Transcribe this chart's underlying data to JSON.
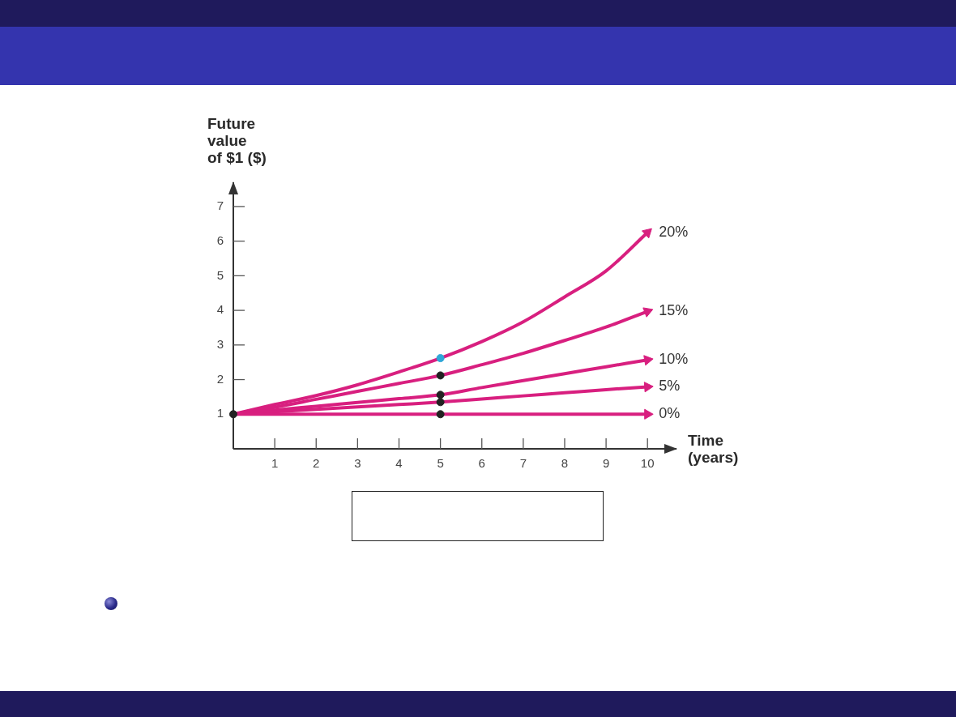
{
  "chart_data": {
    "type": "line",
    "xlabel": "Time (years)",
    "ylabel": "Future value of $1 ($)",
    "legend": "right",
    "x": [
      0,
      1,
      2,
      3,
      4,
      5,
      6,
      7,
      8,
      9,
      10
    ],
    "xlim": [
      0,
      10.7
    ],
    "xticks": [
      1,
      2,
      3,
      4,
      5,
      6,
      7,
      8,
      9,
      10
    ],
    "ylim": [
      0,
      7.7
    ],
    "yticks": [
      1,
      2,
      3,
      4,
      5,
      6,
      7
    ],
    "series": [
      {
        "name": "0%",
        "color": "#d81f7f",
        "marker": "none",
        "values": [
          1,
          1,
          1,
          1,
          1,
          1,
          1,
          1,
          1,
          1,
          1
        ]
      },
      {
        "name": "5%",
        "color": "#d81f7f",
        "marker": "none",
        "values": [
          1,
          1.07,
          1.14,
          1.21,
          1.28,
          1.35,
          1.44,
          1.53,
          1.62,
          1.71,
          1.79
        ]
      },
      {
        "name": "10%",
        "color": "#d81f7f",
        "marker": "none",
        "values": [
          1,
          1.12,
          1.23,
          1.34,
          1.45,
          1.56,
          1.77,
          1.97,
          2.17,
          2.37,
          2.57
        ]
      },
      {
        "name": "15%",
        "color": "#d81f7f",
        "marker": "none",
        "values": [
          1,
          1.2,
          1.43,
          1.66,
          1.89,
          2.12,
          2.43,
          2.76,
          3.13,
          3.52,
          3.97
        ]
      },
      {
        "name": "20%",
        "color": "#d81f7f",
        "marker": "none",
        "values": [
          1,
          1.28,
          1.54,
          1.85,
          2.22,
          2.62,
          3.1,
          3.67,
          4.39,
          5.14,
          6.25
        ]
      },
      {
        "type": "scatter",
        "marker": "circle",
        "color": "#222222",
        "values": [
          1,
          null,
          null,
          null,
          null,
          1,
          null,
          null,
          null,
          null,
          null
        ]
      },
      {
        "type": "scatter",
        "marker": "circle",
        "color": "#222222",
        "values": [
          null,
          null,
          null,
          null,
          null,
          1.35,
          null,
          null,
          null,
          null,
          null
        ]
      },
      {
        "type": "scatter",
        "marker": "circle",
        "color": "#222222",
        "values": [
          null,
          null,
          null,
          null,
          null,
          1.56,
          null,
          null,
          null,
          null,
          null
        ]
      },
      {
        "type": "scatter",
        "marker": "circle",
        "color": "#222222",
        "values": [
          null,
          null,
          null,
          null,
          null,
          2.12,
          null,
          null,
          null,
          null,
          null
        ]
      },
      {
        "type": "scatter",
        "marker": "circle",
        "color": "#2ea7d8",
        "values": [
          null,
          null,
          null,
          null,
          null,
          2.62,
          null,
          null,
          null,
          null,
          null
        ]
      }
    ]
  }
}
